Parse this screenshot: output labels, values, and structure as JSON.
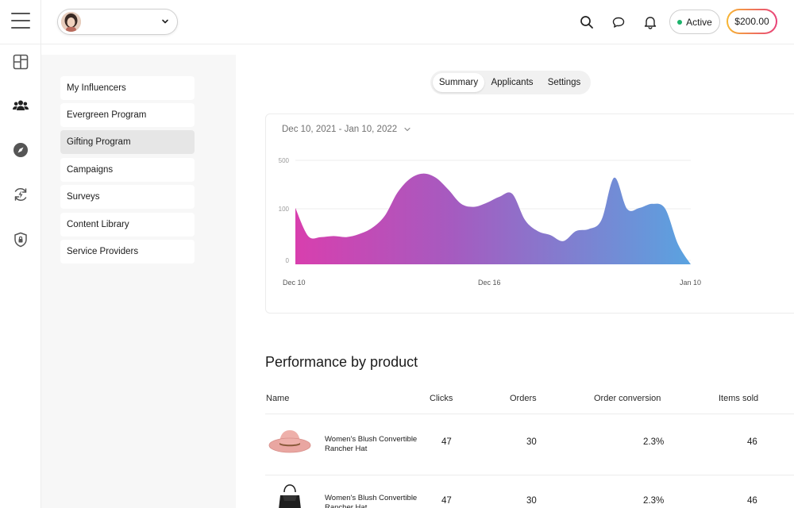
{
  "header": {
    "status_label": "Active",
    "balance": "$200.00",
    "status_color": "#1bb36b",
    "icons": [
      "menu-icon",
      "chevron-down-icon",
      "search-icon",
      "chat-icon",
      "bell-icon"
    ]
  },
  "rail": {
    "icons": [
      "dashboard-icon",
      "users-icon",
      "compass-icon",
      "lightning-cycle-icon",
      "shield-icon"
    ]
  },
  "subnav": {
    "items": [
      {
        "label": "My Influencers"
      },
      {
        "label": "Evergreen Program"
      },
      {
        "label": "Gifting Program"
      },
      {
        "label": "Campaigns"
      },
      {
        "label": "Surveys"
      },
      {
        "label": "Content Library"
      },
      {
        "label": "Service Providers"
      }
    ],
    "active_index": 2
  },
  "tabs": {
    "items": [
      "Summary",
      "Applicants",
      "Settings"
    ],
    "active": "Summary"
  },
  "chart": {
    "date_range": "Dec 10, 2021 - Jan 10, 2022"
  },
  "chart_data": {
    "type": "area",
    "x_tick_labels": [
      "Dec 10",
      "Dec 16",
      "Jan 10"
    ],
    "y_tick_labels": [
      "500",
      "100",
      "0"
    ],
    "x": [
      "Dec 10",
      "Dec 11",
      "Dec 12",
      "Dec 13",
      "Dec 14",
      "Dec 15",
      "Dec 16",
      "Dec 17",
      "Dec 18",
      "Dec 19",
      "Dec 20",
      "Dec 21",
      "Dec 22",
      "Dec 23",
      "Dec 24",
      "Dec 25",
      "Dec 26",
      "Dec 27",
      "Dec 28",
      "Dec 29",
      "Dec 30",
      "Dec 31",
      "Jan 1",
      "Jan 2",
      "Jan 3",
      "Jan 4",
      "Jan 5",
      "Jan 6",
      "Jan 7",
      "Jan 8",
      "Jan 9",
      "Jan 10"
    ],
    "y_level": [
      0.56,
      0.28,
      0.27,
      0.28,
      0.27,
      0.3,
      0.36,
      0.48,
      0.71,
      0.85,
      0.9,
      0.86,
      0.74,
      0.6,
      0.57,
      0.61,
      0.67,
      0.7,
      0.44,
      0.33,
      0.29,
      0.23,
      0.33,
      0.35,
      0.44,
      0.86,
      0.55,
      0.56,
      0.6,
      0.55,
      0.2,
      0.0
    ],
    "gradient": [
      "#d83fae",
      "#a55bc0",
      "#5aa3e0"
    ],
    "gridlines": true,
    "legend": "none"
  },
  "performance": {
    "title": "Performance by product",
    "columns": [
      "Name",
      "Clicks",
      "Orders",
      "Order conversion",
      "Items sold"
    ],
    "rows": [
      {
        "name": "Women's Blush Convertible Rancher Hat",
        "clicks": "47",
        "orders": "30",
        "conversion": "2.3%",
        "items_sold": "46",
        "thumb": "hat-image"
      },
      {
        "name": "Women's Blush Convertible Rancher Hat",
        "clicks": "47",
        "orders": "30",
        "conversion": "2.3%",
        "items_sold": "46",
        "thumb": "bag-image"
      }
    ]
  }
}
